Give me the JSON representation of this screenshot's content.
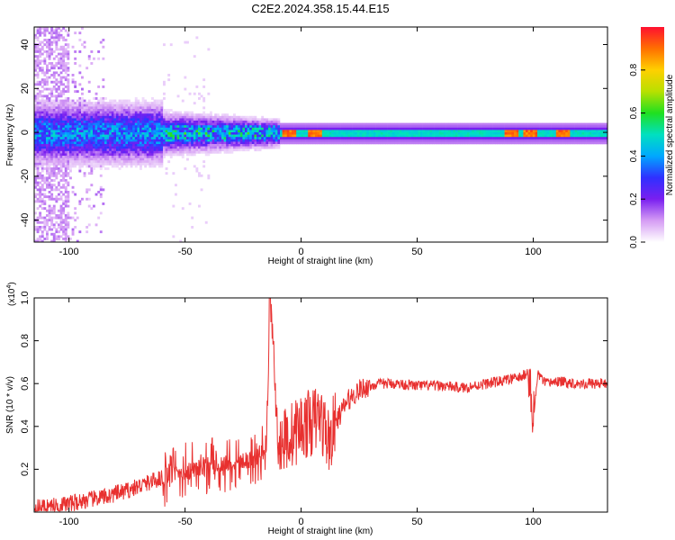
{
  "chart_data": [
    {
      "type": "heatmap",
      "title": "C2E2.2024.358.15.44.E15",
      "xlabel": "Height of straight line (km)",
      "ylabel": "Frequency (Hz)",
      "xlim": [
        -115,
        132
      ],
      "ylim": [
        -50,
        48
      ],
      "x_ticks": [
        -100,
        -50,
        0,
        50,
        100
      ],
      "y_ticks": [
        -40,
        -20,
        0,
        20,
        40
      ],
      "colorbar": {
        "label": "Normalized spectral amplitude",
        "range": [
          0,
          1
        ],
        "ticks": [
          "0.0",
          "0.2",
          "0.4",
          "0.6",
          "0.8"
        ],
        "colors": [
          "#ffffff",
          "#d59cf4",
          "#7a1ff0",
          "#2f30ff",
          "#00a8ff",
          "#00e0c0",
          "#20e020",
          "#b8e000",
          "#ffd000",
          "#ff7000",
          "#ff1030"
        ]
      }
    },
    {
      "type": "line",
      "title": "",
      "xlabel": "Height of straight line (km)",
      "ylabel": "SNR (10 * v/v)",
      "y_multiplier": "(x10",
      "y_multiplier_exp": "4",
      "y_multiplier_close": ")",
      "xlim": [
        -115,
        132
      ],
      "ylim": [
        0,
        1.0
      ],
      "x_ticks": [
        -100,
        -50,
        0,
        50,
        100
      ],
      "y_ticks": [
        "0.2",
        "0.4",
        "0.6",
        "0.8",
        "1.0"
      ],
      "series_color": "#e8302f",
      "series": [
        {
          "x": [
            -115,
            -105,
            -95,
            -85,
            -75,
            -65,
            -55,
            -45,
            -35,
            -25,
            -20,
            -15,
            -13,
            -10,
            -5,
            0,
            5,
            8,
            12,
            15,
            20,
            25,
            30,
            35,
            40,
            50,
            60,
            70,
            80,
            85,
            90,
            95,
            98,
            100,
            102,
            105,
            110,
            120,
            132
          ],
          "values": [
            0.02,
            0.03,
            0.05,
            0.07,
            0.1,
            0.14,
            0.18,
            0.2,
            0.22,
            0.24,
            0.25,
            0.3,
            1.0,
            0.32,
            0.35,
            0.4,
            0.42,
            0.45,
            0.33,
            0.42,
            0.52,
            0.57,
            0.59,
            0.6,
            0.6,
            0.59,
            0.59,
            0.58,
            0.6,
            0.61,
            0.62,
            0.63,
            0.66,
            0.42,
            0.65,
            0.6,
            0.61,
            0.6,
            0.6
          ]
        }
      ]
    }
  ]
}
